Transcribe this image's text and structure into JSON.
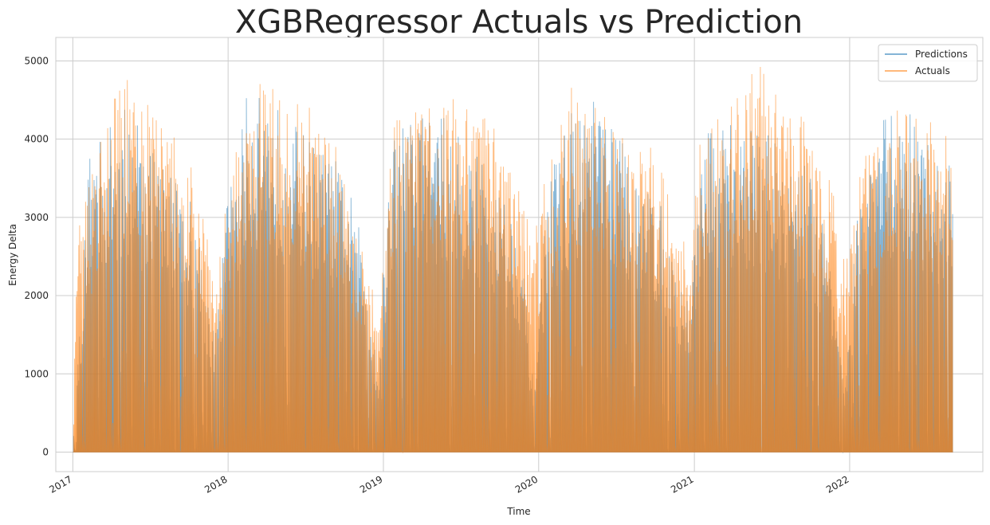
{
  "chart_data": {
    "type": "area",
    "title": "XGBRegressor Actuals vs Prediction",
    "xlabel": "Time",
    "ylabel": "Energy Delta",
    "xlim": [
      "2016-11-22",
      "2022-11-10"
    ],
    "ylim": [
      -250,
      5300
    ],
    "yticks": [
      0,
      1000,
      2000,
      3000,
      4000,
      5000
    ],
    "xticks": [
      "2017",
      "2018",
      "2019",
      "2020",
      "2021",
      "2022"
    ],
    "grid": true,
    "legend_position": "top-right",
    "series": [
      {
        "name": "Predictions",
        "color": "#1f77b4",
        "values_by_date": [
          [
            "2017-01-01",
            0
          ],
          [
            "2017-01-10",
            950
          ],
          [
            "2017-02-10",
            3950
          ],
          [
            "2017-04-01",
            4200
          ],
          [
            "2017-05-15",
            4500
          ],
          [
            "2017-07-01",
            4000
          ],
          [
            "2017-09-01",
            3600
          ],
          [
            "2017-10-20",
            3100
          ],
          [
            "2017-12-01",
            1400
          ],
          [
            "2018-01-01",
            3400
          ],
          [
            "2018-02-15",
            4600
          ],
          [
            "2018-03-20",
            4700
          ],
          [
            "2018-05-20",
            4300
          ],
          [
            "2018-07-20",
            4000
          ],
          [
            "2018-09-20",
            3700
          ],
          [
            "2018-10-25",
            3200
          ],
          [
            "2018-11-20",
            2400
          ],
          [
            "2018-12-20",
            1100
          ],
          [
            "2019-01-20",
            4200
          ],
          [
            "2019-03-20",
            4400
          ],
          [
            "2019-05-20",
            4300
          ],
          [
            "2019-07-20",
            3900
          ],
          [
            "2019-09-20",
            3600
          ],
          [
            "2019-11-20",
            2800
          ],
          [
            "2019-12-20",
            800
          ],
          [
            "2020-01-20",
            3400
          ],
          [
            "2020-03-20",
            4400
          ],
          [
            "2020-05-20",
            4500
          ],
          [
            "2020-07-20",
            4000
          ],
          [
            "2020-09-20",
            3500
          ],
          [
            "2020-11-20",
            2600
          ],
          [
            "2020-12-20",
            1900
          ],
          [
            "2021-01-20",
            4100
          ],
          [
            "2021-03-20",
            4300
          ],
          [
            "2021-05-20",
            4200
          ],
          [
            "2021-07-20",
            4000
          ],
          [
            "2021-09-20",
            3700
          ],
          [
            "2021-11-20",
            2600
          ],
          [
            "2021-12-20",
            700
          ],
          [
            "2022-01-20",
            3300
          ],
          [
            "2022-03-20",
            4300
          ],
          [
            "2022-05-20",
            4400
          ],
          [
            "2022-07-20",
            3800
          ],
          [
            "2022-08-31",
            3700
          ]
        ]
      },
      {
        "name": "Actuals",
        "color": "#ff7f0e",
        "values_by_date": [
          [
            "2017-01-01",
            0
          ],
          [
            "2017-01-10",
            2700
          ],
          [
            "2017-02-10",
            3600
          ],
          [
            "2017-04-01",
            4500
          ],
          [
            "2017-05-15",
            4850
          ],
          [
            "2017-07-01",
            4400
          ],
          [
            "2017-09-01",
            4100
          ],
          [
            "2017-10-20",
            3600
          ],
          [
            "2017-12-01",
            2300
          ],
          [
            "2018-01-01",
            3400
          ],
          [
            "2018-02-15",
            4600
          ],
          [
            "2018-03-20",
            4800
          ],
          [
            "2018-05-20",
            4500
          ],
          [
            "2018-07-20",
            4400
          ],
          [
            "2018-09-20",
            4100
          ],
          [
            "2018-10-25",
            3000
          ],
          [
            "2018-11-20",
            2700
          ],
          [
            "2018-12-20",
            1600
          ],
          [
            "2019-01-20",
            4300
          ],
          [
            "2019-03-20",
            4600
          ],
          [
            "2019-05-20",
            4900
          ],
          [
            "2019-07-20",
            4400
          ],
          [
            "2019-09-20",
            4200
          ],
          [
            "2019-11-20",
            3300
          ],
          [
            "2019-12-20",
            2700
          ],
          [
            "2020-01-20",
            3700
          ],
          [
            "2020-03-20",
            4700
          ],
          [
            "2020-05-20",
            4600
          ],
          [
            "2020-07-20",
            4200
          ],
          [
            "2020-09-20",
            4000
          ],
          [
            "2020-11-20",
            3000
          ],
          [
            "2020-12-20",
            2500
          ],
          [
            "2021-01-20",
            4300
          ],
          [
            "2021-03-20",
            4400
          ],
          [
            "2021-05-20",
            5030
          ],
          [
            "2021-07-20",
            4700
          ],
          [
            "2021-09-20",
            4200
          ],
          [
            "2021-11-20",
            3400
          ],
          [
            "2021-12-20",
            2600
          ],
          [
            "2022-01-20",
            3500
          ],
          [
            "2022-03-20",
            4500
          ],
          [
            "2022-05-20",
            4300
          ],
          [
            "2022-07-20",
            4200
          ],
          [
            "2022-08-31",
            3950
          ]
        ]
      }
    ]
  }
}
